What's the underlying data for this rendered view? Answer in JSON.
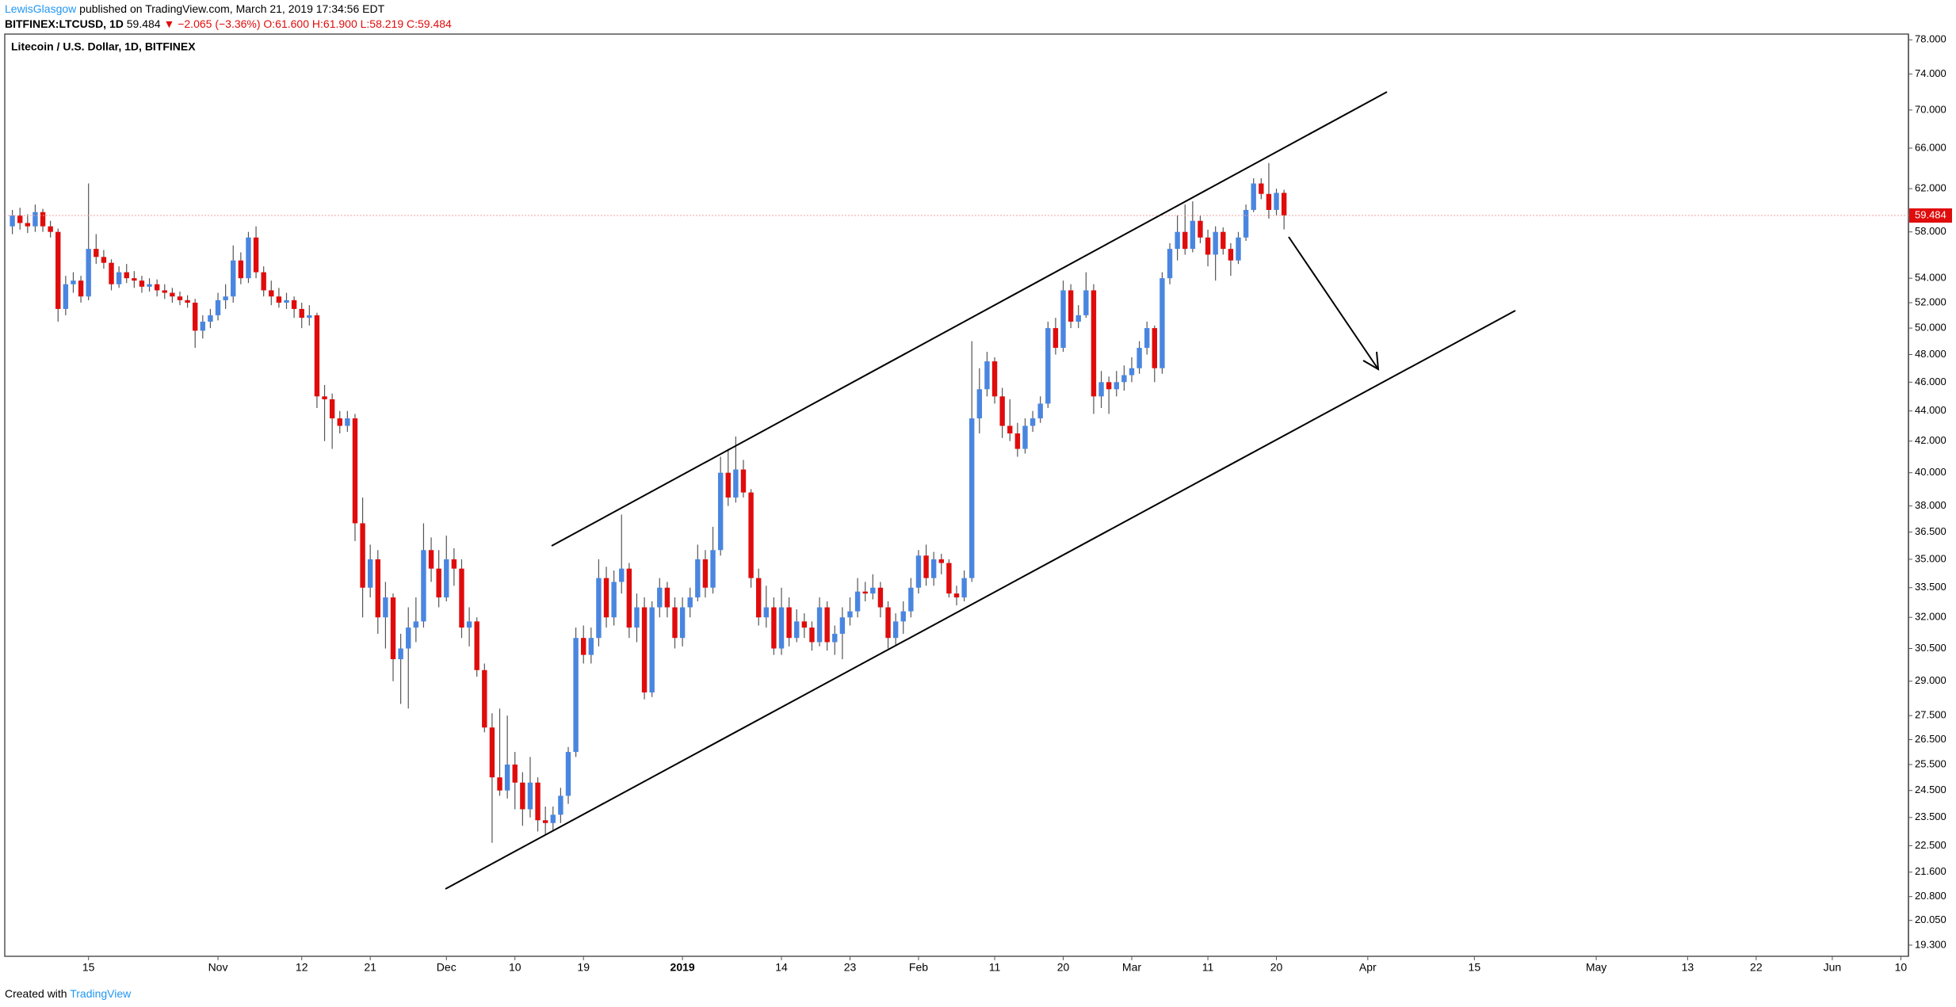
{
  "header": {
    "author": "LewisGlasgow",
    "published": "published on TradingView.com, March 21, 2019 17:34:56 EDT",
    "symbol": "BITFINEX:LTCUSD, 1D",
    "last": "59.484",
    "change": "▼ −2.065 (−3.36%)",
    "ohlc": [
      "O:61.600",
      "H:61.900",
      "L:58.219",
      "C:59.484"
    ]
  },
  "footer": {
    "created": "Created with",
    "brand": "TradingView"
  },
  "chart_data": {
    "type": "candlestick",
    "title": "Litecoin / U.S. Dollar, 1D, BITFINEX",
    "up_color": "#4a86e0",
    "down_color": "#e00c0c",
    "log_scale": true,
    "open": [
      58.5,
      59.5,
      58.8,
      58.5,
      59.8,
      58.5,
      58.0,
      51.5,
      53.5,
      53.8,
      52.5,
      56.5,
      55.8,
      55.3,
      53.5,
      54.5,
      54.0,
      53.8,
      53.3,
      53.5,
      53.0,
      52.8,
      52.5,
      52.2,
      52.0,
      49.8,
      50.5,
      51.0,
      52.2,
      52.5,
      55.5,
      54.0,
      57.5,
      54.5,
      53.0,
      52.5,
      52.0,
      52.2,
      51.5,
      50.8,
      51.0,
      45.0,
      44.8,
      43.5,
      43.0,
      43.5,
      37.0,
      33.5,
      35.0,
      32.0,
      33.0,
      30.0,
      30.5,
      31.5,
      31.8,
      35.5,
      34.5,
      33.0,
      35.0,
      34.5,
      31.5,
      31.8,
      29.5,
      27.0,
      25.0,
      24.5,
      25.5,
      24.8,
      23.8,
      24.8,
      23.4,
      23.3,
      23.6,
      24.3,
      26.0,
      31.0,
      30.2,
      31.0,
      34.0,
      32.0,
      33.8,
      34.5,
      31.5,
      32.5,
      28.5,
      32.5,
      33.5,
      32.5,
      31.0,
      32.5,
      33.0,
      35.0,
      33.5,
      35.5,
      40.0,
      38.5,
      40.2,
      38.8,
      34.0,
      32.0,
      32.5,
      30.5,
      32.5,
      31.0,
      31.8,
      31.5,
      30.8,
      32.5,
      30.8,
      31.2,
      32.0,
      32.3,
      33.3,
      33.2,
      33.5,
      32.5,
      31.0,
      31.8,
      32.3,
      33.5,
      35.2,
      34.0,
      35.0,
      34.8,
      33.2,
      33.0,
      34.0,
      43.5,
      45.5,
      47.5,
      45.0,
      43.0,
      42.5,
      41.5,
      43.0,
      43.5,
      44.5,
      50.0,
      48.5,
      53.0,
      50.5,
      51.0,
      53.0,
      45.0,
      46.0,
      45.5,
      46.0,
      46.5,
      47.0,
      48.5,
      50.0,
      47.0,
      54.0,
      56.5,
      58.0,
      56.5,
      59.0,
      57.5,
      56.0,
      58.0,
      56.5,
      55.5,
      57.5,
      60.0,
      62.5,
      61.5,
      60.0,
      61.6
    ],
    "high": [
      60.0,
      60.2,
      59.6,
      60.5,
      60.1,
      59.0,
      58.3,
      54.2,
      54.5,
      54.2,
      62.5,
      57.8,
      56.4,
      55.6,
      55.0,
      55.2,
      54.6,
      54.2,
      54.0,
      53.9,
      53.5,
      53.2,
      52.9,
      52.6,
      52.3,
      51.0,
      51.5,
      52.8,
      53.5,
      56.8,
      56.2,
      58.0,
      58.5,
      55.0,
      53.8,
      53.2,
      52.8,
      52.5,
      52.0,
      51.8,
      51.2,
      45.8,
      45.2,
      44.0,
      44.0,
      43.8,
      38.5,
      35.8,
      35.5,
      33.8,
      33.2,
      31.2,
      32.5,
      33.0,
      37.0,
      36.2,
      35.5,
      36.3,
      35.6,
      35.0,
      32.5,
      32.0,
      29.8,
      27.6,
      27.8,
      27.5,
      26.0,
      25.2,
      25.8,
      25.0,
      23.9,
      23.9,
      24.6,
      26.2,
      31.5,
      31.6,
      31.5,
      35.0,
      34.6,
      34.4,
      37.5,
      34.8,
      33.2,
      33.0,
      32.8,
      34.0,
      33.8,
      33.0,
      33.0,
      33.5,
      35.8,
      35.5,
      36.8,
      41.0,
      41.5,
      42.3,
      40.8,
      39.0,
      34.5,
      33.6,
      33.0,
      33.5,
      33.0,
      32.4,
      32.2,
      31.8,
      33.0,
      32.8,
      31.6,
      32.5,
      33.0,
      34.0,
      33.8,
      34.2,
      33.8,
      32.8,
      32.2,
      32.8,
      34.0,
      35.5,
      35.8,
      35.4,
      35.3,
      35.0,
      33.6,
      34.4,
      49.0,
      47.0,
      48.2,
      47.8,
      45.6,
      44.8,
      43.2,
      43.5,
      44.0,
      45.0,
      50.5,
      50.8,
      53.8,
      53.5,
      51.8,
      54.5,
      53.5,
      46.8,
      46.4,
      46.8,
      47.2,
      47.8,
      49.0,
      50.5,
      50.2,
      54.5,
      57.0,
      59.5,
      60.5,
      60.8,
      59.5,
      58.2,
      58.5,
      58.4,
      57.0,
      58.0,
      60.5,
      63.0,
      63.0,
      64.5,
      62.0,
      61.9
    ],
    "low": [
      57.8,
      58.2,
      57.9,
      58.0,
      58.0,
      57.5,
      50.5,
      51.0,
      52.8,
      52.0,
      52.2,
      55.2,
      54.8,
      53.0,
      53.2,
      53.6,
      53.2,
      52.8,
      52.9,
      52.5,
      52.3,
      52.0,
      51.8,
      51.6,
      48.5,
      49.2,
      50.0,
      50.6,
      51.5,
      52.0,
      53.5,
      53.6,
      54.0,
      52.5,
      51.8,
      51.6,
      51.5,
      50.8,
      50.0,
      50.2,
      44.2,
      42.0,
      41.5,
      42.5,
      42.6,
      36.0,
      32.0,
      33.0,
      31.2,
      30.5,
      29.0,
      28.0,
      27.8,
      30.8,
      31.5,
      33.8,
      32.5,
      32.8,
      33.6,
      31.0,
      30.6,
      29.2,
      26.8,
      22.6,
      24.3,
      24.2,
      23.8,
      23.2,
      23.5,
      23.0,
      22.9,
      23.0,
      23.3,
      24.0,
      25.8,
      29.8,
      29.8,
      30.6,
      31.5,
      31.6,
      33.2,
      31.0,
      30.8,
      28.2,
      28.3,
      32.0,
      32.0,
      30.5,
      30.6,
      32.0,
      32.8,
      33.0,
      33.2,
      35.2,
      38.0,
      38.2,
      38.5,
      33.5,
      31.6,
      31.5,
      30.2,
      30.2,
      30.6,
      30.8,
      31.0,
      30.4,
      30.6,
      30.4,
      30.2,
      30.0,
      31.6,
      32.0,
      32.8,
      32.9,
      32.0,
      30.5,
      30.6,
      31.2,
      32.0,
      33.2,
      33.6,
      33.6,
      34.2,
      33.0,
      32.6,
      32.8,
      33.8,
      42.5,
      45.0,
      44.5,
      42.2,
      42.0,
      41.0,
      41.2,
      42.6,
      43.2,
      44.2,
      48.0,
      48.2,
      50.0,
      50.0,
      50.8,
      43.8,
      44.2,
      43.8,
      45.0,
      45.4,
      46.0,
      46.6,
      48.0,
      46.0,
      46.6,
      53.5,
      55.5,
      56.0,
      56.2,
      57.0,
      55.0,
      53.8,
      56.0,
      54.2,
      55.2,
      57.2,
      59.8,
      61.0,
      59.2,
      59.5,
      58.219
    ],
    "close": [
      59.5,
      58.8,
      58.5,
      59.8,
      58.5,
      58.0,
      51.5,
      53.5,
      53.8,
      52.5,
      56.5,
      55.8,
      55.3,
      53.5,
      54.5,
      54.0,
      53.8,
      53.3,
      53.5,
      53.0,
      52.8,
      52.5,
      52.2,
      52.0,
      49.8,
      50.5,
      51.0,
      52.2,
      52.5,
      55.5,
      54.0,
      57.5,
      54.5,
      53.0,
      52.5,
      52.0,
      52.2,
      51.5,
      50.8,
      51.0,
      45.0,
      44.8,
      43.5,
      43.0,
      43.5,
      37.0,
      33.5,
      35.0,
      32.0,
      33.0,
      30.0,
      30.5,
      31.5,
      31.8,
      35.5,
      34.5,
      33.0,
      35.0,
      34.5,
      31.5,
      31.8,
      29.5,
      27.0,
      25.0,
      24.5,
      25.5,
      24.8,
      23.8,
      24.8,
      23.4,
      23.3,
      23.6,
      24.3,
      26.0,
      31.0,
      30.2,
      31.0,
      34.0,
      32.0,
      33.8,
      34.5,
      31.5,
      32.5,
      28.5,
      32.5,
      33.5,
      32.5,
      31.0,
      32.5,
      33.0,
      35.0,
      33.5,
      35.5,
      40.0,
      38.5,
      40.2,
      38.8,
      34.0,
      32.0,
      32.5,
      30.5,
      32.5,
      31.0,
      31.8,
      31.5,
      30.8,
      32.5,
      30.8,
      31.2,
      32.0,
      32.3,
      33.3,
      33.2,
      33.5,
      32.5,
      31.0,
      31.8,
      32.3,
      33.5,
      35.2,
      34.0,
      35.0,
      34.8,
      33.2,
      33.0,
      34.0,
      43.5,
      45.5,
      47.5,
      45.0,
      43.0,
      42.5,
      41.5,
      43.0,
      43.5,
      44.5,
      50.0,
      48.5,
      53.0,
      50.5,
      51.0,
      53.0,
      45.0,
      46.0,
      45.5,
      46.0,
      46.5,
      47.0,
      48.5,
      50.0,
      47.0,
      54.0,
      56.5,
      58.0,
      56.5,
      59.0,
      57.5,
      56.0,
      58.0,
      56.5,
      55.5,
      57.5,
      60.0,
      62.5,
      61.5,
      60.0,
      61.6,
      59.484
    ],
    "last_price_label": "59.484",
    "ylim": [
      18.97,
      78.7
    ],
    "yticks": [
      {
        "value": 78,
        "label": "78.000"
      },
      {
        "value": 74,
        "label": "74.000"
      },
      {
        "value": 70,
        "label": "70.000"
      },
      {
        "value": 66,
        "label": "66.000"
      },
      {
        "value": 62,
        "label": "62.000"
      },
      {
        "value": 58,
        "label": "58.000"
      },
      {
        "value": 54,
        "label": "54.000"
      },
      {
        "value": 52,
        "label": "52.000"
      },
      {
        "value": 50,
        "label": "50.000"
      },
      {
        "value": 48,
        "label": "48.000"
      },
      {
        "value": 46,
        "label": "46.000"
      },
      {
        "value": 44,
        "label": "44.000"
      },
      {
        "value": 42,
        "label": "42.000"
      },
      {
        "value": 40,
        "label": "40.000"
      },
      {
        "value": 38,
        "label": "38.000"
      },
      {
        "value": 36.5,
        "label": "36.500"
      },
      {
        "value": 35,
        "label": "35.000"
      },
      {
        "value": 33.5,
        "label": "33.500"
      },
      {
        "value": 32,
        "label": "32.000"
      },
      {
        "value": 30.5,
        "label": "30.500"
      },
      {
        "value": 29,
        "label": "29.000"
      },
      {
        "value": 27.5,
        "label": "27.500"
      },
      {
        "value": 26.5,
        "label": "26.500"
      },
      {
        "value": 25.5,
        "label": "25.500"
      },
      {
        "value": 24.5,
        "label": "24.500"
      },
      {
        "value": 23.5,
        "label": "23.500"
      },
      {
        "value": 22.5,
        "label": "22.500"
      },
      {
        "value": 21.6,
        "label": "21.600"
      },
      {
        "value": 20.8,
        "label": "20.800"
      },
      {
        "value": 20.05,
        "label": "20.050"
      },
      {
        "value": 19.3,
        "label": "19.300"
      }
    ],
    "xlim": [
      -1,
      249
    ],
    "xticks": [
      {
        "value": 10,
        "label": "15"
      },
      {
        "value": 27,
        "label": "Nov"
      },
      {
        "value": 38,
        "label": "12"
      },
      {
        "value": 47,
        "label": "21"
      },
      {
        "value": 57,
        "label": "Dec"
      },
      {
        "value": 66,
        "label": "10"
      },
      {
        "value": 75,
        "label": "19"
      },
      {
        "value": 88,
        "label": "2019"
      },
      {
        "value": 101,
        "label": "14"
      },
      {
        "value": 110,
        "label": "23"
      },
      {
        "value": 119,
        "label": "Feb"
      },
      {
        "value": 129,
        "label": "11"
      },
      {
        "value": 138,
        "label": "20"
      },
      {
        "value": 147,
        "label": "Mar"
      },
      {
        "value": 157,
        "label": "11"
      },
      {
        "value": 166,
        "label": "20"
      },
      {
        "value": 178,
        "label": "Apr"
      },
      {
        "value": 192,
        "label": "15"
      },
      {
        "value": 208,
        "label": "May"
      },
      {
        "value": 220,
        "label": "13"
      },
      {
        "value": 229,
        "label": "22"
      },
      {
        "value": 239,
        "label": "Jun"
      },
      {
        "value": 248,
        "label": "10"
      }
    ]
  }
}
